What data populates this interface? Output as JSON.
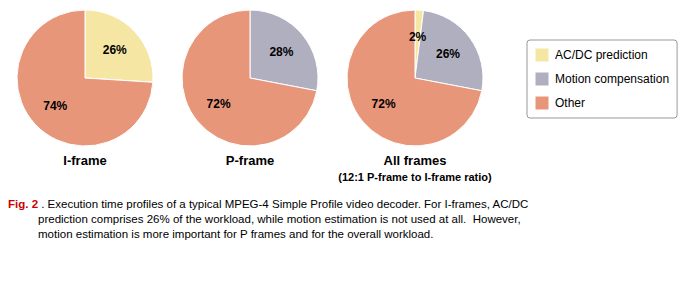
{
  "chart_data": [
    {
      "type": "pie",
      "title": "I-frame",
      "categories": [
        "AC/DC prediction",
        "Motion compensation",
        "Other"
      ],
      "values": [
        26,
        0,
        74
      ],
      "value_labels": [
        "26%",
        null,
        "74%"
      ],
      "colors": [
        "#f5e6a3",
        "#b0afc0",
        "#e8967a"
      ],
      "data_labels": true
    },
    {
      "type": "pie",
      "title": "P-frame",
      "categories": [
        "AC/DC prediction",
        "Motion compensation",
        "Other"
      ],
      "values": [
        0,
        28,
        72
      ],
      "value_labels": [
        null,
        "28%",
        "72%"
      ],
      "colors": [
        "#f5e6a3",
        "#b0afc0",
        "#e8967a"
      ],
      "data_labels": true
    },
    {
      "type": "pie",
      "title": "All frames",
      "subtitle": "(12:1 P-frame to I-frame ratio)",
      "categories": [
        "AC/DC prediction",
        "Motion compensation",
        "Other"
      ],
      "values": [
        2,
        26,
        72
      ],
      "value_labels": [
        "2%",
        "26%",
        "72%"
      ],
      "colors": [
        "#f5e6a3",
        "#b0afc0",
        "#e8967a"
      ],
      "data_labels": true
    }
  ],
  "annotations": [
    {
      "text": "Fig. 2",
      "color": "#cc0000"
    },
    {
      "text": " . Execution time profiles of a typical MPEG-4 Simple Profile video decoder. For I-frames, AC/DC\nprediction comprises 26% of the workload, while motion estimation is not used at all.  However,\nmotion estimation is more important for P frames and for the overall workload."
    }
  ]
}
